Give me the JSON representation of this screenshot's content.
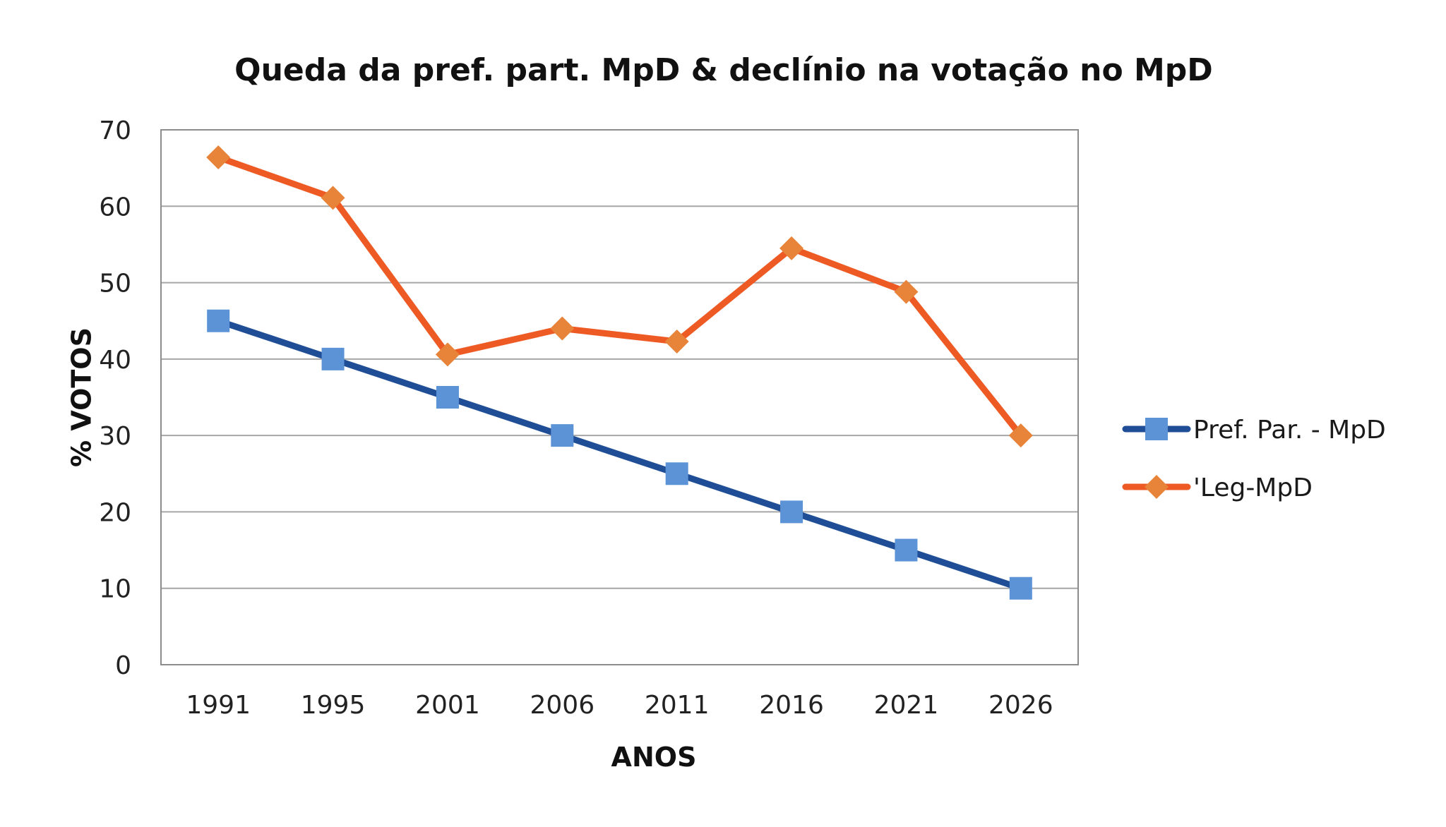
{
  "chart_data": {
    "type": "line",
    "title": "Queda da pref. part. MpD & declínio na votação no MpD",
    "xlabel": "ANOS",
    "ylabel": "% VOTOS",
    "categories": [
      "1991",
      "1995",
      "2001",
      "2006",
      "2011",
      "2016",
      "2021",
      "2026"
    ],
    "ylim": [
      0,
      70
    ],
    "yticks": [
      "0",
      "10",
      "20",
      "30",
      "40",
      "50",
      "60",
      "70"
    ],
    "grid": true,
    "legend_position": "right",
    "series": [
      {
        "name": "Pref. Par. - MpD",
        "values": [
          45,
          40,
          35,
          30,
          25,
          20,
          15,
          10
        ],
        "line_color": "#1f4e96",
        "marker": "square",
        "marker_color": "#5b93d6"
      },
      {
        "name": "'Leg-MpD",
        "values": [
          66.4,
          61.1,
          40.6,
          44.0,
          42.3,
          54.5,
          48.8,
          30.0
        ],
        "line_color": "#ee5a24",
        "marker": "diamond",
        "marker_color": "#e8843a"
      }
    ]
  }
}
